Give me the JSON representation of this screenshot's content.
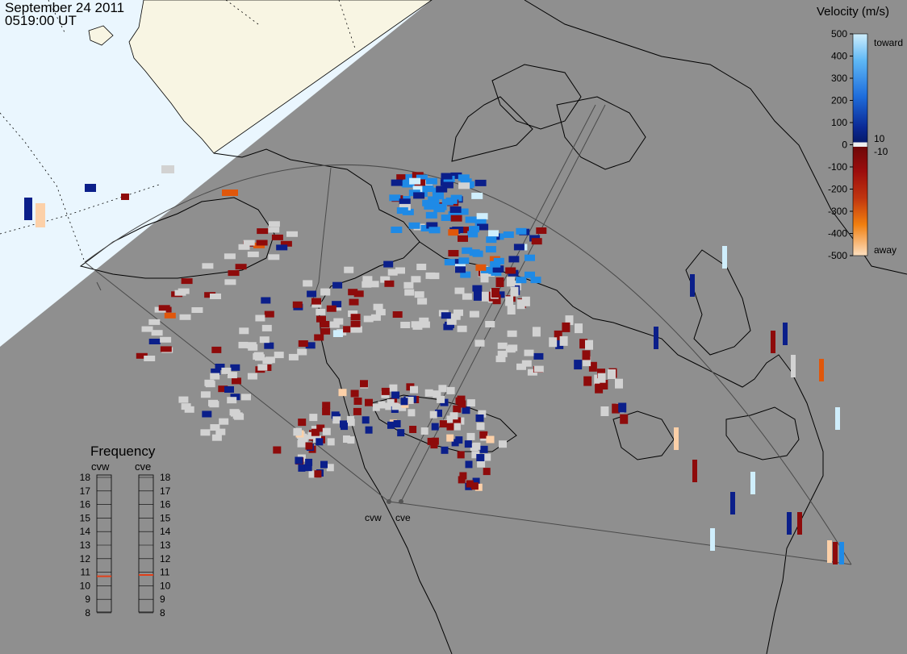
{
  "header": {
    "date": "September  24 2011",
    "time": "0519:00 UT"
  },
  "colorbar": {
    "title": "Velocity (m/s)",
    "ticks": [
      "500",
      "400",
      "300",
      "200",
      "100",
      "0",
      "-100",
      "-200",
      "-300",
      "-400",
      "-500"
    ],
    "near_zero_pos": "10",
    "near_zero_neg": "-10",
    "toward_label": "toward",
    "away_label": "away",
    "colors": {
      "toward_strong": "#cfeefc",
      "toward_mid": "#1f8ae6",
      "toward_weak": "#0b1f8a",
      "away_weak": "#8e0b0b",
      "away_mid": "#e0570b",
      "away_strong": "#fcd0a8",
      "ground_scatter": "#d2d2d2"
    }
  },
  "frequency_panel": {
    "title": "Frequency",
    "left_radar": "cvw",
    "right_radar": "cve",
    "scale": [
      "18",
      "17",
      "16",
      "15",
      "14",
      "13",
      "12",
      "11",
      "10",
      "9",
      "8"
    ],
    "cvw_value_mhz": 10.7,
    "cve_value_mhz": 10.8,
    "marker_color": "#e0401a"
  },
  "map": {
    "radars": [
      {
        "name": "cvw"
      },
      {
        "name": "cve"
      }
    ],
    "sea_color": "#eaf6fe",
    "daylight_land_color": "#f8f5e3",
    "night_color": "#8f8f8f"
  }
}
